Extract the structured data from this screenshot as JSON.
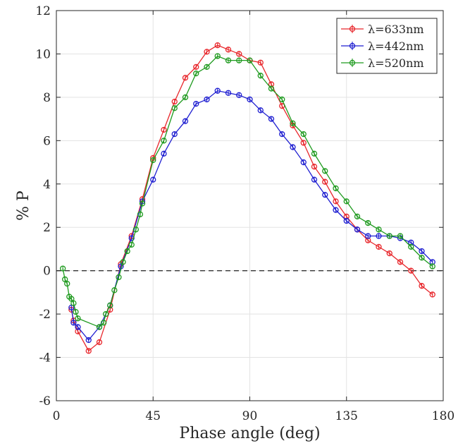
{
  "chart_data": {
    "type": "line",
    "xlabel": "Phase angle (deg)",
    "ylabel": "% P",
    "xlim": [
      0,
      180
    ],
    "ylim": [
      -6,
      12
    ],
    "xticks": [
      0,
      45,
      90,
      135,
      180
    ],
    "yticks": [
      -6,
      -4,
      -2,
      0,
      2,
      4,
      6,
      8,
      10,
      12
    ],
    "grid": true,
    "legend": "top-right",
    "reference_line": 0,
    "series": [
      {
        "name": "λ=633nm",
        "color": "#e8262b",
        "x": [
          7,
          8,
          10,
          15,
          20,
          25,
          30,
          35,
          40,
          45,
          50,
          55,
          60,
          65,
          70,
          75,
          80,
          85,
          90,
          95,
          100,
          105,
          110,
          115,
          120,
          125,
          130,
          135,
          140,
          145,
          150,
          155,
          160,
          165,
          170,
          175
        ],
        "y": [
          -1.8,
          -2.3,
          -2.8,
          -3.7,
          -3.3,
          -1.8,
          0.3,
          1.6,
          3.3,
          5.2,
          6.5,
          7.8,
          8.9,
          9.4,
          10.1,
          10.4,
          10.2,
          10.0,
          9.7,
          9.6,
          8.6,
          7.6,
          6.7,
          5.9,
          4.8,
          4.1,
          3.2,
          2.5,
          1.9,
          1.4,
          1.1,
          0.8,
          0.4,
          0.0,
          -0.7,
          -1.1
        ]
      },
      {
        "name": "λ=442nm",
        "color": "#1f1fd1",
        "x": [
          7,
          8,
          10,
          15,
          20,
          25,
          30,
          35,
          40,
          45,
          50,
          55,
          60,
          65,
          70,
          75,
          80,
          85,
          90,
          95,
          100,
          105,
          110,
          115,
          120,
          125,
          130,
          135,
          140,
          145,
          150,
          155,
          160,
          165,
          170,
          175
        ],
        "y": [
          -1.7,
          -2.4,
          -2.6,
          -3.2,
          -2.6,
          -1.6,
          0.2,
          1.5,
          3.2,
          4.2,
          5.4,
          6.3,
          6.9,
          7.7,
          7.9,
          8.3,
          8.2,
          8.1,
          7.9,
          7.4,
          7.0,
          6.3,
          5.7,
          5.0,
          4.2,
          3.5,
          2.8,
          2.3,
          1.9,
          1.6,
          1.6,
          1.6,
          1.5,
          1.3,
          0.9,
          0.4
        ]
      },
      {
        "name": "λ=520nm",
        "color": "#1e9a1e",
        "x": [
          3,
          4,
          5,
          6,
          7,
          8,
          9,
          10,
          20,
          22,
          23,
          25,
          27,
          29,
          31,
          33,
          35,
          37,
          39,
          40,
          45,
          50,
          55,
          60,
          65,
          70,
          75,
          80,
          85,
          90,
          95,
          100,
          105,
          110,
          115,
          120,
          125,
          130,
          135,
          140,
          145,
          150,
          155,
          160,
          165,
          170,
          175
        ],
        "y": [
          0.1,
          -0.4,
          -0.6,
          -1.2,
          -1.3,
          -1.5,
          -1.9,
          -2.2,
          -2.6,
          -2.4,
          -2.0,
          -1.6,
          -0.9,
          -0.3,
          0.4,
          0.9,
          1.2,
          1.9,
          2.6,
          3.1,
          5.1,
          6.0,
          7.5,
          8.0,
          9.1,
          9.4,
          9.9,
          9.7,
          9.7,
          9.7,
          9.0,
          8.4,
          7.9,
          6.8,
          6.3,
          5.4,
          4.6,
          3.8,
          3.2,
          2.5,
          2.2,
          1.9,
          1.6,
          1.6,
          1.1,
          0.6,
          0.2
        ]
      }
    ]
  }
}
